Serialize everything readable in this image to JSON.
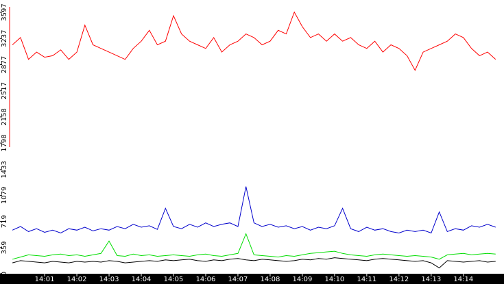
{
  "chart_data": {
    "type": "line",
    "x": [
      840,
      840.25,
      840.5,
      840.75,
      841,
      841.25,
      841.5,
      841.75,
      842,
      842.25,
      842.5,
      842.75,
      843,
      843.25,
      843.5,
      843.75,
      844,
      844.25,
      844.5,
      844.75,
      845,
      845.25,
      845.5,
      845.75,
      846,
      846.25,
      846.5,
      846.75,
      847,
      847.25,
      847.5,
      847.75,
      848,
      848.25,
      848.5,
      848.75,
      849,
      849.25,
      849.5,
      849.75,
      850,
      850.25,
      850.5,
      850.75,
      851,
      851.25,
      851.5,
      851.75,
      852,
      852.25,
      852.5,
      852.75,
      853,
      853.25,
      853.5,
      853.75,
      854,
      854.25,
      854.5,
      854.75,
      855
    ],
    "xlim": [
      839.87,
      855.26
    ],
    "xticks": [
      {
        "value": 841,
        "label": "14:01"
      },
      {
        "value": 842,
        "label": "14:02"
      },
      {
        "value": 843,
        "label": "14:03"
      },
      {
        "value": 844,
        "label": "14:04"
      },
      {
        "value": 845,
        "label": "14:05"
      },
      {
        "value": 846,
        "label": "14:06"
      },
      {
        "value": 847,
        "label": "14:07"
      },
      {
        "value": 848,
        "label": "14:08"
      },
      {
        "value": 849,
        "label": "14:09"
      },
      {
        "value": 850,
        "label": "14:10"
      },
      {
        "value": 851,
        "label": "14:11"
      },
      {
        "value": 852,
        "label": "14:12"
      },
      {
        "value": 853,
        "label": "14:13"
      },
      {
        "value": 854,
        "label": "14:14"
      }
    ],
    "ylim": [
      0,
      3767
    ],
    "yticks": [
      0,
      359,
      719,
      1079,
      1433,
      1798,
      2158,
      2517,
      2877,
      3237,
      3597
    ],
    "series": [
      {
        "color": "#ff0000",
        "values": [
          3150,
          3250,
          2950,
          3050,
          2980,
          3000,
          3080,
          2950,
          3050,
          3420,
          3150,
          3100,
          3050,
          3000,
          2950,
          3100,
          3200,
          3350,
          3150,
          3200,
          3550,
          3300,
          3200,
          3150,
          3100,
          3250,
          3050,
          3150,
          3200,
          3300,
          3250,
          3150,
          3200,
          3350,
          3300,
          3600,
          3400,
          3250,
          3300,
          3200,
          3300,
          3200,
          3250,
          3150,
          3100,
          3200,
          3050,
          3150,
          3100,
          3000,
          2800,
          3050,
          3100,
          3150,
          3200,
          3300,
          3250,
          3100,
          3000,
          3050,
          2950
        ]
      },
      {
        "color": "#0000cc",
        "values": [
          600,
          650,
          580,
          620,
          570,
          600,
          560,
          620,
          600,
          640,
          590,
          620,
          600,
          650,
          620,
          680,
          640,
          660,
          610,
          900,
          650,
          620,
          680,
          640,
          700,
          650,
          680,
          700,
          650,
          1200,
          700,
          650,
          680,
          640,
          660,
          620,
          650,
          600,
          640,
          620,
          660,
          900,
          620,
          580,
          640,
          600,
          620,
          580,
          560,
          600,
          580,
          600,
          560,
          850,
          580,
          620,
          600,
          660,
          640,
          680,
          640
        ]
      },
      {
        "color": "#00dd00",
        "values": [
          200,
          230,
          260,
          250,
          240,
          260,
          270,
          250,
          260,
          240,
          260,
          280,
          450,
          250,
          240,
          270,
          250,
          260,
          240,
          250,
          260,
          250,
          240,
          260,
          270,
          250,
          240,
          260,
          280,
          550,
          260,
          250,
          240,
          230,
          250,
          240,
          260,
          280,
          290,
          300,
          310,
          280,
          260,
          250,
          240,
          260,
          270,
          260,
          250,
          240,
          250,
          240,
          230,
          200,
          260,
          270,
          280,
          260,
          270,
          280,
          270
        ]
      },
      {
        "color": "#000000",
        "values": [
          150,
          180,
          170,
          160,
          150,
          170,
          160,
          150,
          170,
          160,
          170,
          160,
          180,
          170,
          150,
          160,
          170,
          180,
          170,
          190,
          180,
          190,
          200,
          180,
          170,
          190,
          180,
          200,
          210,
          190,
          180,
          200,
          190,
          180,
          170,
          180,
          200,
          190,
          210,
          200,
          220,
          210,
          200,
          190,
          180,
          200,
          210,
          200,
          190,
          180,
          170,
          180,
          150,
          80,
          180,
          170,
          160,
          170,
          180,
          160,
          170
        ]
      }
    ]
  }
}
